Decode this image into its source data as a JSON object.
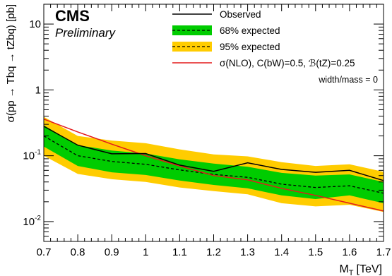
{
  "chart_data": {
    "type": "line",
    "experiment": "CMS",
    "status": "Preliminary",
    "xlabel_main": "M",
    "xlabel_sub": "T",
    "xlabel_unit": "[TeV]",
    "ylabel": "σ(pp → Tbq → tZbq) [pb]",
    "ylabel_log": true,
    "xlim": [
      0.7,
      1.7
    ],
    "ylim": [
      0.005,
      20
    ],
    "x_ticks": [
      0.7,
      0.8,
      0.9,
      1,
      1.1,
      1.2,
      1.3,
      1.4,
      1.5,
      1.6,
      1.7
    ],
    "x_tick_labels": [
      "0.7",
      "0.8",
      "0.9",
      "1",
      "1.1",
      "1.2",
      "1.3",
      "1.4",
      "1.5",
      "1.6",
      "1.7"
    ],
    "y_ticks": [
      0.01,
      0.1,
      1,
      10
    ],
    "y_tick_labels": [
      {
        "base": "10",
        "exp": "-2"
      },
      {
        "base": "10",
        "exp": "-1"
      },
      {
        "base": "1",
        "exp": ""
      },
      {
        "base": "10",
        "exp": ""
      }
    ],
    "x": [
      0.7,
      0.8,
      0.9,
      1.0,
      1.1,
      1.2,
      1.3,
      1.4,
      1.5,
      1.6,
      1.7
    ],
    "series": [
      {
        "name": "Observed",
        "kind": "line",
        "color": "#000000",
        "dash": "",
        "values": [
          0.28,
          0.145,
          0.107,
          0.108,
          0.072,
          0.058,
          0.078,
          0.062,
          0.056,
          0.06,
          0.042
        ]
      },
      {
        "name": "68% expected",
        "kind": "band",
        "color": "#00cc00",
        "lower": [
          0.138,
          0.07,
          0.056,
          0.051,
          0.042,
          0.036,
          0.032,
          0.025,
          0.022,
          0.025,
          0.019
        ],
        "upper": [
          0.29,
          0.145,
          0.12,
          0.108,
          0.088,
          0.076,
          0.068,
          0.055,
          0.05,
          0.052,
          0.04
        ]
      },
      {
        "name": "95% expected",
        "kind": "band",
        "color": "#ffcc00",
        "lower": [
          0.1,
          0.053,
          0.044,
          0.04,
          0.033,
          0.029,
          0.026,
          0.019,
          0.017,
          0.018,
          0.014
        ],
        "upper": [
          0.39,
          0.2,
          0.17,
          0.155,
          0.125,
          0.105,
          0.098,
          0.08,
          0.07,
          0.074,
          0.057
        ]
      },
      {
        "name": "Expected",
        "kind": "line",
        "color": "#000000",
        "dash": "4,3",
        "in_legend": false,
        "values": [
          0.2,
          0.1,
          0.082,
          0.074,
          0.061,
          0.052,
          0.047,
          0.037,
          0.033,
          0.035,
          0.027
        ]
      },
      {
        "name": "σ(NLO), C(bW)=0.5, ℬ(tZ)=0.25",
        "kind": "line",
        "color": "#e41a1c",
        "dash": "",
        "values": [
          0.36,
          0.23,
          0.15,
          0.1,
          0.07,
          0.05,
          0.043,
          0.032,
          0.025,
          0.019,
          0.0145
        ]
      }
    ],
    "legend": {
      "placement": "top-right",
      "entries": [
        {
          "label": "Observed",
          "style": "line",
          "color": "#000000",
          "dash": ""
        },
        {
          "label": "68% expected",
          "style": "band",
          "color": "#00cc00",
          "dash": "4,3"
        },
        {
          "label": "95% expected",
          "style": "band",
          "color": "#ffcc00",
          "dash": "4,3"
        },
        {
          "label": "σ(NLO), C(bW)=0.5, ℬ(tZ)=0.25",
          "style": "line",
          "color": "#e41a1c",
          "dash": ""
        }
      ],
      "note": "width/mass = 0"
    }
  }
}
